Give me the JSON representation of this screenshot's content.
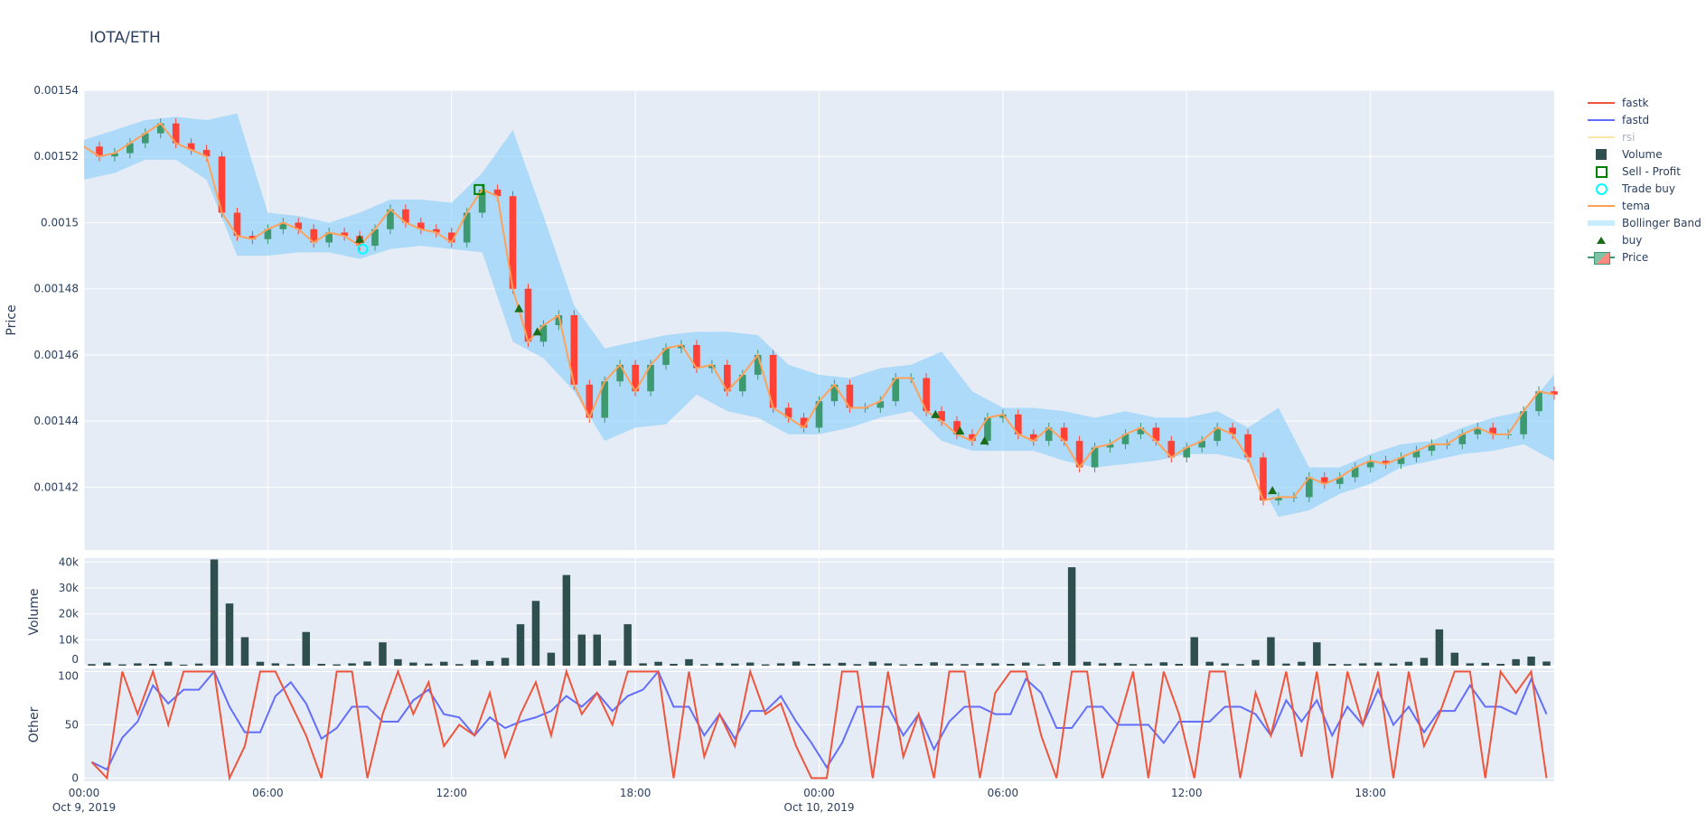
{
  "title": "IOTA/ETH",
  "colors": {
    "increasing": "#3D9970",
    "decreasing": "#FF4136",
    "tema": "#FFA15A",
    "bb": "rgba(135,206,250,0.6)",
    "volume": "#2F4F4F",
    "fastk": "#EF553B",
    "fastd": "#636EFA",
    "rsi": "#FECB52",
    "buy": "#1a6b1a",
    "sell": "#008000",
    "tradebuy": "#00FFFF",
    "plot_bg": "#E5ECF6"
  },
  "legend": [
    {
      "label": "fastk",
      "icon": "line",
      "color": "#EF553B"
    },
    {
      "label": "fastd",
      "icon": "line",
      "color": "#636EFA"
    },
    {
      "label": "rsi",
      "icon": "line-faded",
      "color": "#FECB52"
    },
    {
      "label": "Volume",
      "icon": "square",
      "color": "#2F4F4F"
    },
    {
      "label": "Sell - Profit",
      "icon": "square-open",
      "color": "#008000"
    },
    {
      "label": "Trade buy",
      "icon": "circle-open",
      "color": "#00FFFF"
    },
    {
      "label": "tema",
      "icon": "line",
      "color": "#FFA15A"
    },
    {
      "label": "Bollinger Band",
      "icon": "band",
      "color": "#C7ECFB"
    },
    {
      "label": "buy",
      "icon": "triangle-up",
      "color": "#1a6b1a"
    },
    {
      "label": "Price",
      "icon": "candlestick",
      "color": "#3D9970"
    }
  ],
  "chart_data": {
    "type": "candlestick",
    "x_axis": {
      "range_hours_from_start": [
        0,
        48
      ],
      "ticks": [
        {
          "h": 0,
          "label": "00:00",
          "sub": "Oct 9, 2019"
        },
        {
          "h": 6,
          "label": "06:00"
        },
        {
          "h": 12,
          "label": "12:00"
        },
        {
          "h": 18,
          "label": "18:00"
        },
        {
          "h": 24,
          "label": "00:00",
          "sub": "Oct 10, 2019"
        },
        {
          "h": 30,
          "label": "06:00"
        },
        {
          "h": 36,
          "label": "12:00"
        },
        {
          "h": 42,
          "label": "18:00"
        }
      ]
    },
    "price_panel": {
      "ylabel": "Price",
      "ylim": [
        0.001401,
        0.00154
      ],
      "ticks": [
        {
          "v": 0.00154,
          "label": "0.00154"
        },
        {
          "v": 0.00152,
          "label": "0.00152"
        },
        {
          "v": 0.0015,
          "label": "0.0015"
        },
        {
          "v": 0.00148,
          "label": "0.00148"
        },
        {
          "v": 0.00146,
          "label": "0.00146"
        },
        {
          "v": 0.00144,
          "label": "0.00144"
        },
        {
          "v": 0.00142,
          "label": "0.00142"
        }
      ],
      "interval_hours": 0.5,
      "close": [
        0.001523,
        0.00152,
        0.001521,
        0.001524,
        0.001527,
        0.00153,
        0.001524,
        0.001522,
        0.00152,
        0.001503,
        0.001496,
        0.001495,
        0.001498,
        0.0015,
        0.001498,
        0.001494,
        0.001497,
        0.001496,
        0.001493,
        0.001498,
        0.001504,
        0.0015,
        0.001498,
        0.001497,
        0.001494,
        0.001503,
        0.00151,
        0.001508,
        0.00148,
        0.001464,
        0.001469,
        0.001472,
        0.001451,
        0.001441,
        0.001452,
        0.001457,
        0.001449,
        0.001457,
        0.001462,
        0.001463,
        0.001456,
        0.001457,
        0.001449,
        0.001454,
        0.00146,
        0.001444,
        0.001441,
        0.001438,
        0.001446,
        0.001451,
        0.001444,
        0.001444,
        0.001446,
        0.001453,
        0.001453,
        0.001443,
        0.00144,
        0.001436,
        0.001434,
        0.001441,
        0.001442,
        0.001436,
        0.001434,
        0.001438,
        0.001434,
        0.001426,
        0.001432,
        0.001433,
        0.001436,
        0.001438,
        0.001434,
        0.001429,
        0.001432,
        0.001434,
        0.001438,
        0.001436,
        0.001429,
        0.001416,
        0.001417,
        0.001417,
        0.001423,
        0.001421,
        0.001423,
        0.001426,
        0.001428,
        0.001427,
        0.001429,
        0.001431,
        0.001433,
        0.001433,
        0.001436,
        0.001438,
        0.001436,
        0.001436,
        0.001443,
        0.001449,
        0.001448
      ],
      "bb_interval_hours": 1,
      "bb_upper": [
        0.001525,
        0.001528,
        0.001531,
        0.001532,
        0.001531,
        0.001533,
        0.001503,
        0.001502,
        0.0015,
        0.001503,
        0.001507,
        0.001507,
        0.001506,
        0.001515,
        0.001528,
        0.001502,
        0.001475,
        0.001462,
        0.001464,
        0.001466,
        0.001467,
        0.001467,
        0.001466,
        0.001457,
        0.001454,
        0.001453,
        0.001456,
        0.001457,
        0.001461,
        0.001449,
        0.001444,
        0.001444,
        0.001443,
        0.001441,
        0.001443,
        0.001441,
        0.001441,
        0.001443,
        0.001438,
        0.001444,
        0.001426,
        0.001426,
        0.00143,
        0.001433,
        0.001434,
        0.001438,
        0.001441,
        0.001443,
        0.001454
      ],
      "bb_lower": [
        0.001513,
        0.001515,
        0.001519,
        0.001519,
        0.001513,
        0.00149,
        0.00149,
        0.001491,
        0.001491,
        0.001489,
        0.001492,
        0.001493,
        0.001492,
        0.001491,
        0.001464,
        0.001459,
        0.001449,
        0.001434,
        0.001438,
        0.001439,
        0.001448,
        0.001443,
        0.001441,
        0.001436,
        0.001436,
        0.001438,
        0.001441,
        0.001443,
        0.001434,
        0.001431,
        0.001431,
        0.001431,
        0.001428,
        0.001426,
        0.001427,
        0.001428,
        0.00143,
        0.00143,
        0.001428,
        0.001411,
        0.001413,
        0.001418,
        0.001421,
        0.001426,
        0.001428,
        0.00143,
        0.001431,
        0.001433,
        0.001428
      ],
      "buy": [
        {
          "h": 9.0,
          "v": 0.001495
        },
        {
          "h": 14.2,
          "v": 0.001474
        },
        {
          "h": 14.8,
          "v": 0.001467
        },
        {
          "h": 27.8,
          "v": 0.001442
        },
        {
          "h": 28.6,
          "v": 0.001437
        },
        {
          "h": 29.4,
          "v": 0.001434
        },
        {
          "h": 38.8,
          "v": 0.001419
        }
      ],
      "trade_buy": [
        {
          "h": 9.1,
          "v": 0.001492
        }
      ],
      "sell_profit": [
        {
          "h": 12.9,
          "v": 0.00151
        }
      ]
    },
    "volume_panel": {
      "ylabel": "Volume",
      "ylim": [
        0,
        41500
      ],
      "ticks": [
        {
          "v": 0,
          "label": "0"
        },
        {
          "v": 10000,
          "label": "10k"
        },
        {
          "v": 20000,
          "label": "20k"
        },
        {
          "v": 30000,
          "label": "30k"
        },
        {
          "v": 40000,
          "label": "40k"
        }
      ],
      "interval_hours": 0.5,
      "values": [
        600,
        1200,
        500,
        900,
        700,
        1500,
        400,
        800,
        41000,
        24000,
        11000,
        1500,
        900,
        600,
        13000,
        700,
        500,
        900,
        1600,
        9000,
        2500,
        1200,
        800,
        1500,
        600,
        2200,
        1800,
        3000,
        16000,
        25000,
        5000,
        35000,
        12000,
        12000,
        2000,
        16000,
        900,
        1500,
        700,
        2500,
        600,
        1100,
        800,
        1200,
        500,
        900,
        1600,
        700,
        800,
        1100,
        600,
        1500,
        900,
        500,
        700,
        1300,
        800,
        600,
        1000,
        900,
        700,
        1200,
        500,
        1400,
        38000,
        1500,
        900,
        1100,
        600,
        800,
        1300,
        700,
        11000,
        1500,
        900,
        600,
        2200,
        11000,
        800,
        1500,
        9000,
        700,
        600,
        900,
        1200,
        800,
        1500,
        3000,
        14000,
        5000,
        900,
        1100,
        700,
        2500,
        3500,
        1600
      ]
    },
    "other_panel": {
      "ylabel": "Other",
      "ylim": [
        -3,
        103
      ],
      "ticks": [
        {
          "v": 0,
          "label": "0"
        },
        {
          "v": 50,
          "label": "50"
        },
        {
          "v": 100,
          "label": "100"
        }
      ],
      "interval_hours": 0.5,
      "series": [
        {
          "name": "fastk",
          "values": [
            15,
            0,
            100,
            60,
            100,
            50,
            100,
            100,
            100,
            0,
            30,
            100,
            100,
            70,
            40,
            0,
            100,
            100,
            0,
            60,
            100,
            60,
            90,
            30,
            50,
            40,
            80,
            20,
            60,
            90,
            40,
            100,
            60,
            80,
            50,
            100,
            100,
            100,
            0,
            100,
            20,
            60,
            30,
            100,
            60,
            70,
            30,
            0,
            0,
            100,
            100,
            0,
            100,
            20,
            60,
            0,
            100,
            100,
            0,
            80,
            100,
            100,
            40,
            0,
            100,
            100,
            0,
            50,
            100,
            0,
            100,
            60,
            0,
            100,
            100,
            0,
            80,
            40,
            100,
            20,
            100,
            0,
            100,
            50,
            100,
            0,
            100,
            30,
            60,
            100,
            100,
            0,
            100,
            80,
            100,
            0
          ]
        },
        {
          "name": "fastd",
          "values": [
            15,
            8,
            38,
            53,
            87,
            70,
            83,
            83,
            100,
            67,
            43,
            43,
            77,
            90,
            70,
            37,
            47,
            67,
            67,
            53,
            53,
            73,
            83,
            60,
            57,
            40,
            57,
            47,
            53,
            57,
            63,
            77,
            67,
            80,
            63,
            77,
            83,
            100,
            67,
            67,
            40,
            60,
            37,
            63,
            63,
            77,
            53,
            33,
            10,
            33,
            67,
            67,
            67,
            40,
            60,
            27,
            53,
            67,
            67,
            60,
            60,
            93,
            80,
            47,
            47,
            67,
            67,
            50,
            50,
            50,
            33,
            53,
            53,
            53,
            67,
            67,
            60,
            40,
            73,
            53,
            73,
            40,
            67,
            50,
            83,
            50,
            67,
            43,
            63,
            63,
            87,
            67,
            67,
            60,
            93,
            60
          ]
        }
      ]
    }
  }
}
